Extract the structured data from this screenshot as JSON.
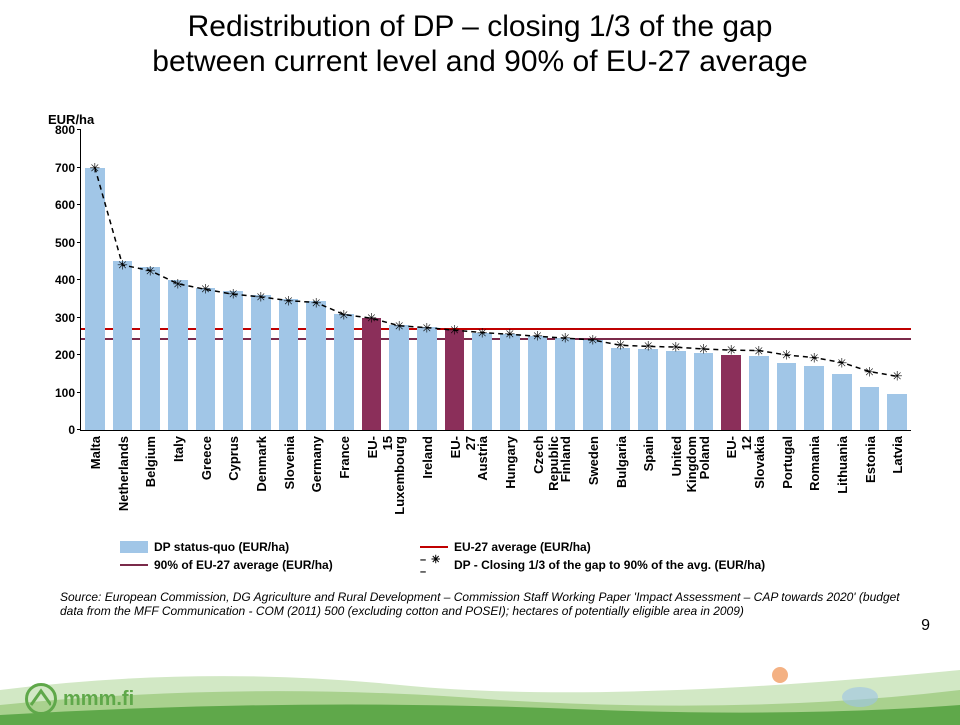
{
  "title_line1": "Redistribution of DP – closing 1/3 of the gap",
  "title_line2": "between current level and 90% of EU-27 average",
  "ylabel": "EUR/ha",
  "yaxis": {
    "min": 0,
    "max": 800,
    "step": 100
  },
  "colors": {
    "bar_normal": "#a1c6e7",
    "bar_highlight": "#8b2f5a",
    "ref_avg": "#c00000",
    "ref_90": "#7a2a4a",
    "dash": "#000000",
    "footer_green": "#5fa84a",
    "footer_hill": "#a9d18e",
    "footer_light": "#d2e8c5",
    "logo_green": "#5fa84a"
  },
  "ref": {
    "avg": 266,
    "ninety": 239
  },
  "legend": {
    "l1": "DP status-quo (EUR/ha)",
    "l2": "EU-27 average (EUR/ha)",
    "l3": "90% of EU-27 average (EUR/ha)",
    "l4": "DP - Closing 1/3 of the gap to 90% of the avg. (EUR/ha)"
  },
  "source": "Source: European Commission, DG Agriculture and Rural Development – Commission Staff Working Paper 'Impact Assessment – CAP towards 2020' (budget data from the MFF Communication - COM (2011) 500 (excluding cotton and POSEI); hectares of potentially eligible area in 2009)",
  "page": "9",
  "logo_text": "mmm.fi",
  "categories": [
    {
      "label": "Malta",
      "bar": 700,
      "close": 700,
      "hl": false
    },
    {
      "label": "Netherlands",
      "bar": 450,
      "close": 440,
      "hl": false
    },
    {
      "label": "Belgium",
      "bar": 435,
      "close": 425,
      "hl": false
    },
    {
      "label": "Italy",
      "bar": 400,
      "close": 390,
      "hl": false
    },
    {
      "label": "Greece",
      "bar": 380,
      "close": 375,
      "hl": false
    },
    {
      "label": "Cyprus",
      "bar": 370,
      "close": 362,
      "hl": false
    },
    {
      "label": "Denmark",
      "bar": 360,
      "close": 355,
      "hl": false
    },
    {
      "label": "Slovenia",
      "bar": 350,
      "close": 345,
      "hl": false
    },
    {
      "label": "Germany",
      "bar": 345,
      "close": 340,
      "hl": false
    },
    {
      "label": "France",
      "bar": 310,
      "close": 308,
      "hl": false
    },
    {
      "label": "EU-15",
      "bar": 300,
      "close": 298,
      "hl": true
    },
    {
      "label": "Luxembourg",
      "bar": 280,
      "close": 278,
      "hl": false
    },
    {
      "label": "Ireland",
      "bar": 275,
      "close": 273,
      "hl": false
    },
    {
      "label": "EU-27",
      "bar": 266,
      "close": 266,
      "hl": true
    },
    {
      "label": "Austria",
      "bar": 260,
      "close": 260,
      "hl": false
    },
    {
      "label": "Hungary",
      "bar": 255,
      "close": 255,
      "hl": false
    },
    {
      "label": "Czech Republic",
      "bar": 250,
      "close": 250,
      "hl": false
    },
    {
      "label": "Finland",
      "bar": 245,
      "close": 245,
      "hl": false
    },
    {
      "label": "Sweden",
      "bar": 240,
      "close": 240,
      "hl": false
    },
    {
      "label": "Bulgaria",
      "bar": 220,
      "close": 226,
      "hl": false
    },
    {
      "label": "Spain",
      "bar": 215,
      "close": 223,
      "hl": false
    },
    {
      "label": "United Kingdom",
      "bar": 212,
      "close": 221,
      "hl": false
    },
    {
      "label": "Poland",
      "bar": 205,
      "close": 216,
      "hl": false
    },
    {
      "label": "EU-12",
      "bar": 200,
      "close": 213,
      "hl": true
    },
    {
      "label": "Slovakia",
      "bar": 198,
      "close": 212,
      "hl": false
    },
    {
      "label": "Portugal",
      "bar": 180,
      "close": 200,
      "hl": false
    },
    {
      "label": "Romania",
      "bar": 170,
      "close": 193,
      "hl": false
    },
    {
      "label": "Lithuania",
      "bar": 150,
      "close": 180,
      "hl": false
    },
    {
      "label": "Estonia",
      "bar": 115,
      "close": 156,
      "hl": false
    },
    {
      "label": "Latvia",
      "bar": 95,
      "close": 143,
      "hl": false
    }
  ]
}
